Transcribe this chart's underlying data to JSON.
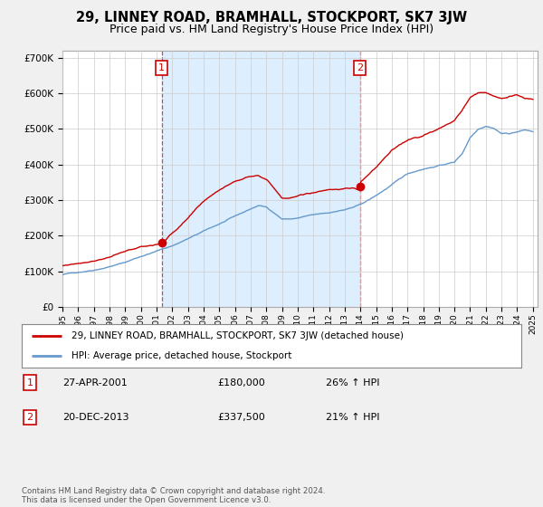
{
  "title": "29, LINNEY ROAD, BRAMHALL, STOCKPORT, SK7 3JW",
  "subtitle": "Price paid vs. HM Land Registry's House Price Index (HPI)",
  "title_fontsize": 10.5,
  "subtitle_fontsize": 9,
  "bg_color": "#f0f0f0",
  "plot_bg_color": "#ffffff",
  "legend_label_red": "29, LINNEY ROAD, BRAMHALL, STOCKPORT, SK7 3JW (detached house)",
  "legend_label_blue": "HPI: Average price, detached house, Stockport",
  "transactions": [
    {
      "num": 1,
      "date": "27-APR-2001",
      "price": "£180,000",
      "hpi": "26% ↑ HPI",
      "year": 2001.32
    },
    {
      "num": 2,
      "date": "20-DEC-2013",
      "price": "£337,500",
      "hpi": "21% ↑ HPI",
      "year": 2013.97
    }
  ],
  "footnote": "Contains HM Land Registry data © Crown copyright and database right 2024.\nThis data is licensed under the Open Government Licence v3.0.",
  "ylim": [
    0,
    720000
  ],
  "yticks": [
    0,
    100000,
    200000,
    300000,
    400000,
    500000,
    600000,
    700000
  ],
  "ytick_labels": [
    "£0",
    "£100K",
    "£200K",
    "£300K",
    "£400K",
    "£500K",
    "£600K",
    "£700K"
  ],
  "red_color": "#cc0000",
  "blue_color": "#6699cc",
  "fill_color": "#ddeeff",
  "vline_color": "#cc0000",
  "grid_color": "#cccccc",
  "marker1_value": 180000,
  "marker2_value": 337500,
  "hpi_anchors_x": [
    1995,
    1996,
    1997,
    1998,
    1999,
    2000,
    2001,
    2002,
    2003,
    2004,
    2005,
    2006,
    2007,
    2007.5,
    2008,
    2008.5,
    2009,
    2009.5,
    2010,
    2010.5,
    2011,
    2011.5,
    2012,
    2012.5,
    2013,
    2013.5,
    2014,
    2015,
    2016,
    2017,
    2018,
    2019,
    2020,
    2020.5,
    2021,
    2021.5,
    2022,
    2022.5,
    2023,
    2023.5,
    2024,
    2024.5,
    2025
  ],
  "hpi_anchors_y": [
    90000,
    97000,
    105000,
    116000,
    128000,
    145000,
    160000,
    175000,
    195000,
    215000,
    235000,
    255000,
    275000,
    285000,
    280000,
    265000,
    248000,
    248000,
    250000,
    255000,
    258000,
    260000,
    262000,
    268000,
    272000,
    278000,
    285000,
    310000,
    340000,
    370000,
    385000,
    395000,
    405000,
    430000,
    475000,
    500000,
    510000,
    505000,
    490000,
    490000,
    495000,
    500000,
    495000
  ],
  "red_anchors_x": [
    1995,
    1996,
    1997,
    1998,
    1999,
    2000,
    2001,
    2001.32,
    2002,
    2003,
    2004,
    2005,
    2006,
    2007,
    2007.5,
    2008,
    2008.5,
    2009,
    2009.5,
    2010,
    2010.5,
    2011,
    2011.5,
    2012,
    2012.5,
    2013,
    2013.5,
    2013.97,
    2014,
    2015,
    2016,
    2017,
    2018,
    2019,
    2020,
    2020.5,
    2021,
    2021.5,
    2022,
    2022.5,
    2023,
    2023.5,
    2024,
    2024.5,
    2025
  ],
  "red_anchors_y": [
    115000,
    123000,
    133000,
    145000,
    158000,
    170000,
    178000,
    180000,
    210000,
    250000,
    295000,
    330000,
    355000,
    370000,
    375000,
    365000,
    340000,
    315000,
    315000,
    320000,
    325000,
    330000,
    335000,
    340000,
    342000,
    343000,
    344000,
    337500,
    360000,
    400000,
    450000,
    475000,
    490000,
    510000,
    530000,
    560000,
    595000,
    610000,
    610000,
    600000,
    595000,
    600000,
    605000,
    595000,
    590000
  ]
}
